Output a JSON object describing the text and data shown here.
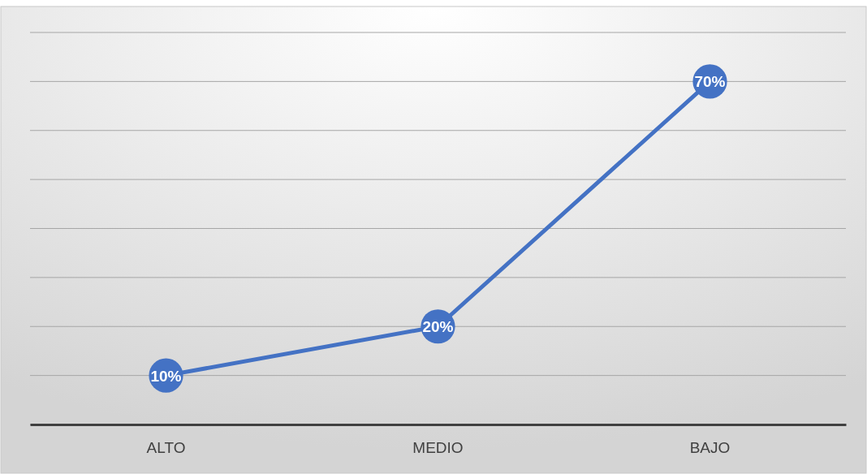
{
  "chart_data": {
    "type": "line",
    "categories": [
      "ALTO",
      "MEDIO",
      "BAJO"
    ],
    "series": [
      {
        "color": "#4472c4",
        "values": [
          10,
          20,
          70
        ],
        "value_labels": [
          "10%",
          "20%",
          "70%"
        ]
      }
    ],
    "ylim": [
      0,
      80
    ],
    "yticks": [
      {
        "value": 0,
        "label": null
      },
      {
        "value": 10,
        "label": null
      },
      {
        "value": 20,
        "label": null
      },
      {
        "value": 30,
        "label": null
      },
      {
        "value": 40,
        "label": null
      },
      {
        "value": 50,
        "label": null
      },
      {
        "value": 60,
        "label": null
      },
      {
        "value": 70,
        "label": null
      },
      {
        "value": 80,
        "label": null
      }
    ],
    "tick_labels": "x",
    "grid": "y",
    "marker": "circle",
    "line_style": "solid"
  }
}
